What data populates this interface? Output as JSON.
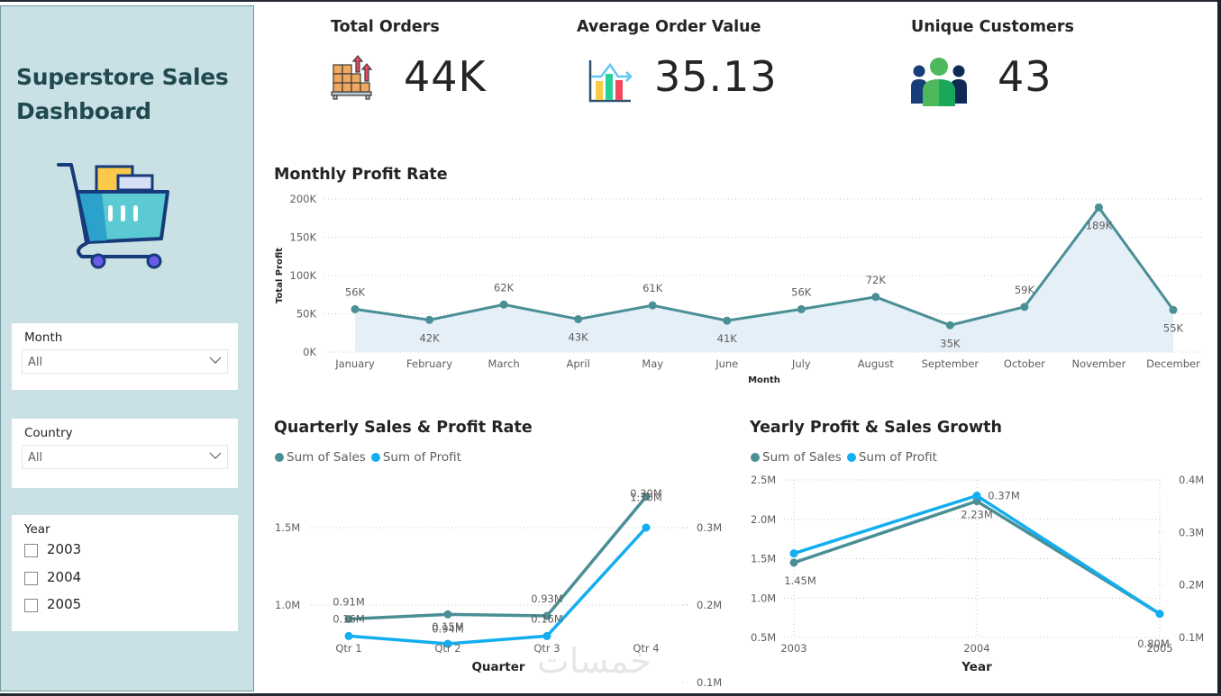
{
  "sidebar": {
    "title_line1": "Superstore Sales",
    "title_line2": "Dashboard",
    "logo_icon": "shopping-cart-icon",
    "slicers": {
      "month": {
        "label": "Month",
        "value": "All"
      },
      "country": {
        "label": "Country",
        "value": "All"
      },
      "year": {
        "label": "Year",
        "options": [
          "2003",
          "2004",
          "2005"
        ],
        "checked": [
          false,
          false,
          false
        ]
      }
    }
  },
  "kpis": [
    {
      "title": "Total Orders",
      "value": "44K",
      "icon": "boxes-pallet-icon"
    },
    {
      "title": "Average Order Value",
      "value": "35.13",
      "icon": "bar-chart-trend-icon"
    },
    {
      "title": "Unique Customers",
      "value": "43",
      "icon": "users-group-icon"
    }
  ],
  "colors": {
    "sales": "#4a8f95",
    "profit": "#13aef0",
    "area_fill": "#e4eff8",
    "sidebar_bg": "#c9e1e4",
    "title_dark": "#214a50"
  },
  "watermark": "خمسات",
  "chart_data": [
    {
      "type": "area",
      "title": "Monthly Profit Rate",
      "xlabel": "Month",
      "ylabel": "Total Profit",
      "ylim": [
        0,
        200000
      ],
      "y_ticks": [
        "0K",
        "50K",
        "100K",
        "150K",
        "200K"
      ],
      "y_tick_values": [
        0,
        50000,
        100000,
        150000,
        200000
      ],
      "grid": true,
      "categories": [
        "January",
        "February",
        "March",
        "April",
        "May",
        "June",
        "July",
        "August",
        "September",
        "October",
        "November",
        "December"
      ],
      "values": [
        56000,
        42000,
        62000,
        43000,
        61000,
        41000,
        56000,
        72000,
        35000,
        59000,
        189000,
        55000
      ],
      "labels": [
        "56K",
        "42K",
        "62K",
        "43K",
        "61K",
        "41K",
        "56K",
        "72K",
        "35K",
        "59K",
        "189K",
        "55K"
      ],
      "label_pos": [
        "above",
        "below",
        "above",
        "below",
        "above",
        "below",
        "above",
        "above",
        "below",
        "above",
        "below",
        "below"
      ]
    },
    {
      "type": "line",
      "title": "Quarterly Sales & Profit Rate",
      "xlabel": "Quarter",
      "legend": [
        "Sum of Sales",
        "Sum of Profit"
      ],
      "legend_position": "top-left",
      "categories": [
        "Qtr 1",
        "Qtr 2",
        "Qtr 3",
        "Qtr 4"
      ],
      "y_left": {
        "ticks": [
          "1.0M",
          "1.5M"
        ],
        "tick_values": [
          1000000,
          1500000
        ]
      },
      "y_right": {
        "ticks": [
          "0.1M",
          "0.2M",
          "0.3M"
        ],
        "tick_values": [
          100000,
          200000,
          300000
        ]
      },
      "grid": true,
      "series": [
        {
          "name": "Sum of Sales",
          "axis": "left",
          "values": [
            910000,
            940000,
            930000,
            1700000
          ],
          "labels": [
            "0.91M",
            "0.94M",
            "0.93M",
            "1.70M"
          ]
        },
        {
          "name": "Sum of Profit",
          "axis": "right",
          "values": [
            160000,
            150000,
            160000,
            300000
          ],
          "labels": [
            "0.16M",
            "0.15M",
            "0.16M",
            "0.30M"
          ]
        }
      ]
    },
    {
      "type": "line",
      "title": "Yearly Profit & Sales Growth",
      "xlabel": "Year",
      "legend": [
        "Sum of Sales",
        "Sum of Profit"
      ],
      "legend_position": "top-left",
      "categories": [
        "2003",
        "2004",
        "2005"
      ],
      "y_left": {
        "ticks": [
          "0.5M",
          "1.0M",
          "1.5M",
          "2.0M",
          "2.5M"
        ],
        "tick_values": [
          500000,
          1000000,
          1500000,
          2000000,
          2500000
        ]
      },
      "y_right": {
        "ticks": [
          "0.1M",
          "0.2M",
          "0.3M",
          "0.4M"
        ],
        "tick_values": [
          100000,
          200000,
          300000,
          400000
        ]
      },
      "grid": true,
      "series": [
        {
          "name": "Sum of Sales",
          "axis": "left",
          "values": [
            1450000,
            2230000,
            800000
          ],
          "labels": [
            "1.45M",
            "2.23M",
            "0.80M"
          ]
        },
        {
          "name": "Sum of Profit",
          "axis": "right",
          "values": [
            260000,
            370000,
            145000
          ],
          "labels": [
            "",
            "0.37M",
            ""
          ]
        }
      ]
    }
  ]
}
